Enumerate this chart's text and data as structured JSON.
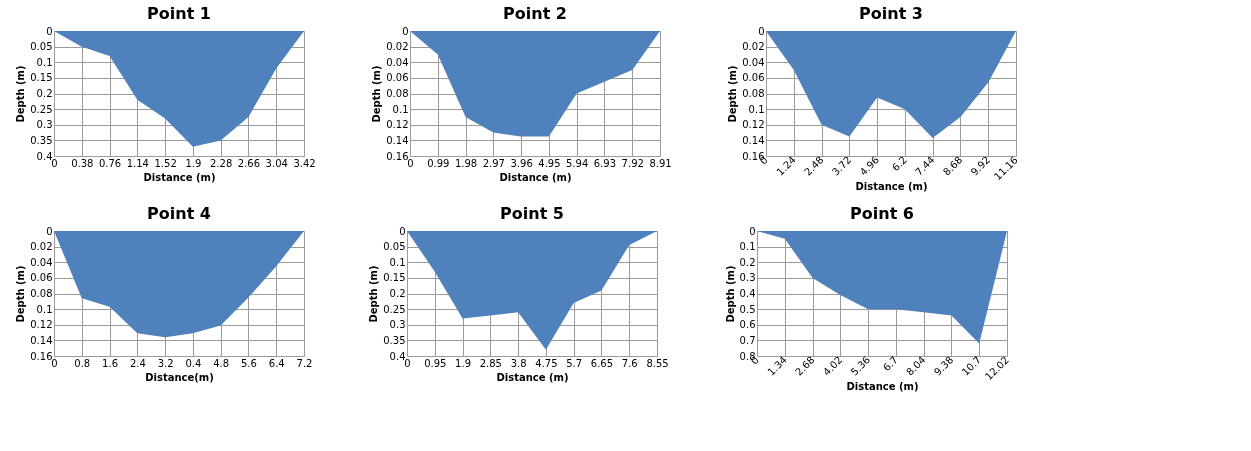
{
  "chart_data": [
    {
      "type": "area",
      "title": "Point 1",
      "xlabel": "Distance (m)",
      "ylabel": "Depth (m)",
      "categories": [
        "0",
        "0.38",
        "0.76",
        "1.14",
        "1.52",
        "1.9",
        "2.28",
        "2.66",
        "3.04",
        "3.42"
      ],
      "series": [
        {
          "color": "#4f81bd",
          "values": [
            0,
            0.05,
            0.08,
            0.22,
            0.28,
            0.37,
            0.35,
            0.275,
            0.12,
            0
          ]
        }
      ],
      "ylim": [
        0.4,
        0
      ],
      "yticks": [
        0,
        0.05,
        0.1,
        0.15,
        0.2,
        0.25,
        0.3,
        0.35,
        0.4
      ],
      "grid": true
    },
    {
      "type": "area",
      "title": "Point 2",
      "xlabel": "Distance (m)",
      "ylabel": "Depth (m)",
      "categories": [
        "0",
        "0.99",
        "1.98",
        "2.97",
        "3.96",
        "4.95",
        "5.94",
        "6.93",
        "7.92",
        "8.91"
      ],
      "series": [
        {
          "color": "#4f81bd",
          "values": [
            0,
            0.03,
            0.11,
            0.13,
            0.135,
            0.135,
            0.08,
            0.065,
            0.05,
            0
          ]
        }
      ],
      "ylim": [
        0.16,
        0
      ],
      "yticks": [
        0,
        0.02,
        0.04,
        0.06,
        0.08,
        0.1,
        0.12,
        0.14,
        0.16
      ],
      "grid": true
    },
    {
      "type": "area",
      "title": "Point 3",
      "xlabel": "Distance (m)",
      "ylabel": "Depth (m)",
      "categories": [
        "0",
        "1.24",
        "2.48",
        "3.72",
        "4.96",
        "6.2",
        "7.44",
        "8.68",
        "9.92",
        "11.16"
      ],
      "series": [
        {
          "color": "#4f81bd",
          "values": [
            0,
            0.05,
            0.12,
            0.135,
            0.085,
            0.1,
            0.137,
            0.11,
            0.066,
            0
          ]
        }
      ],
      "ylim": [
        0.16,
        0
      ],
      "yticks": [
        0,
        0.02,
        0.04,
        0.06,
        0.08,
        0.1,
        0.12,
        0.14,
        0.16
      ],
      "grid": true
    },
    {
      "type": "area",
      "title": "Point 4",
      "xlabel": "Distance(m)",
      "ylabel": "Depth (m)",
      "categories": [
        "0",
        "0.8",
        "1.6",
        "2.4",
        "3.2",
        "0.4",
        "4.8",
        "5.6",
        "6.4",
        "7.2"
      ],
      "series": [
        {
          "color": "#4f81bd",
          "values": [
            0,
            0.086,
            0.097,
            0.131,
            0.136,
            0.131,
            0.121,
            0.085,
            0.045,
            0
          ]
        }
      ],
      "ylim": [
        0.16,
        0
      ],
      "yticks": [
        0,
        0.02,
        0.04,
        0.06,
        0.08,
        0.1,
        0.12,
        0.14,
        0.16
      ],
      "grid": true
    },
    {
      "type": "area",
      "title": "Point 5",
      "xlabel": "Distance (m)",
      "ylabel": "Depth (m)",
      "categories": [
        "0",
        "0.95",
        "1.9",
        "2.85",
        "3.8",
        "4.75",
        "5.7",
        "6.65",
        "7.6",
        "8.55"
      ],
      "series": [
        {
          "color": "#4f81bd",
          "values": [
            0,
            0.13,
            0.28,
            0.27,
            0.26,
            0.38,
            0.23,
            0.19,
            0.045,
            0
          ]
        }
      ],
      "ylim": [
        0.4,
        0
      ],
      "yticks": [
        0,
        0.05,
        0.1,
        0.15,
        0.2,
        0.25,
        0.3,
        0.35,
        0.4
      ],
      "grid": true
    },
    {
      "type": "area",
      "title": "Point 6",
      "xlabel": "Distance (m)",
      "ylabel": "Depth (m)",
      "categories": [
        "0",
        "1.34",
        "2.68",
        "4.02",
        "5.36",
        "6.7",
        "8.04",
        "9.38",
        "10.7",
        "12.02"
      ],
      "series": [
        {
          "color": "#4f81bd",
          "values": [
            0,
            0.05,
            0.3,
            0.41,
            0.5,
            0.5,
            0.52,
            0.54,
            0.72,
            0
          ]
        }
      ],
      "ylim": [
        0.8,
        0
      ],
      "yticks": [
        0,
        0.1,
        0.2,
        0.3,
        0.4,
        0.5,
        0.6,
        0.7,
        0.8
      ],
      "grid": true
    }
  ]
}
